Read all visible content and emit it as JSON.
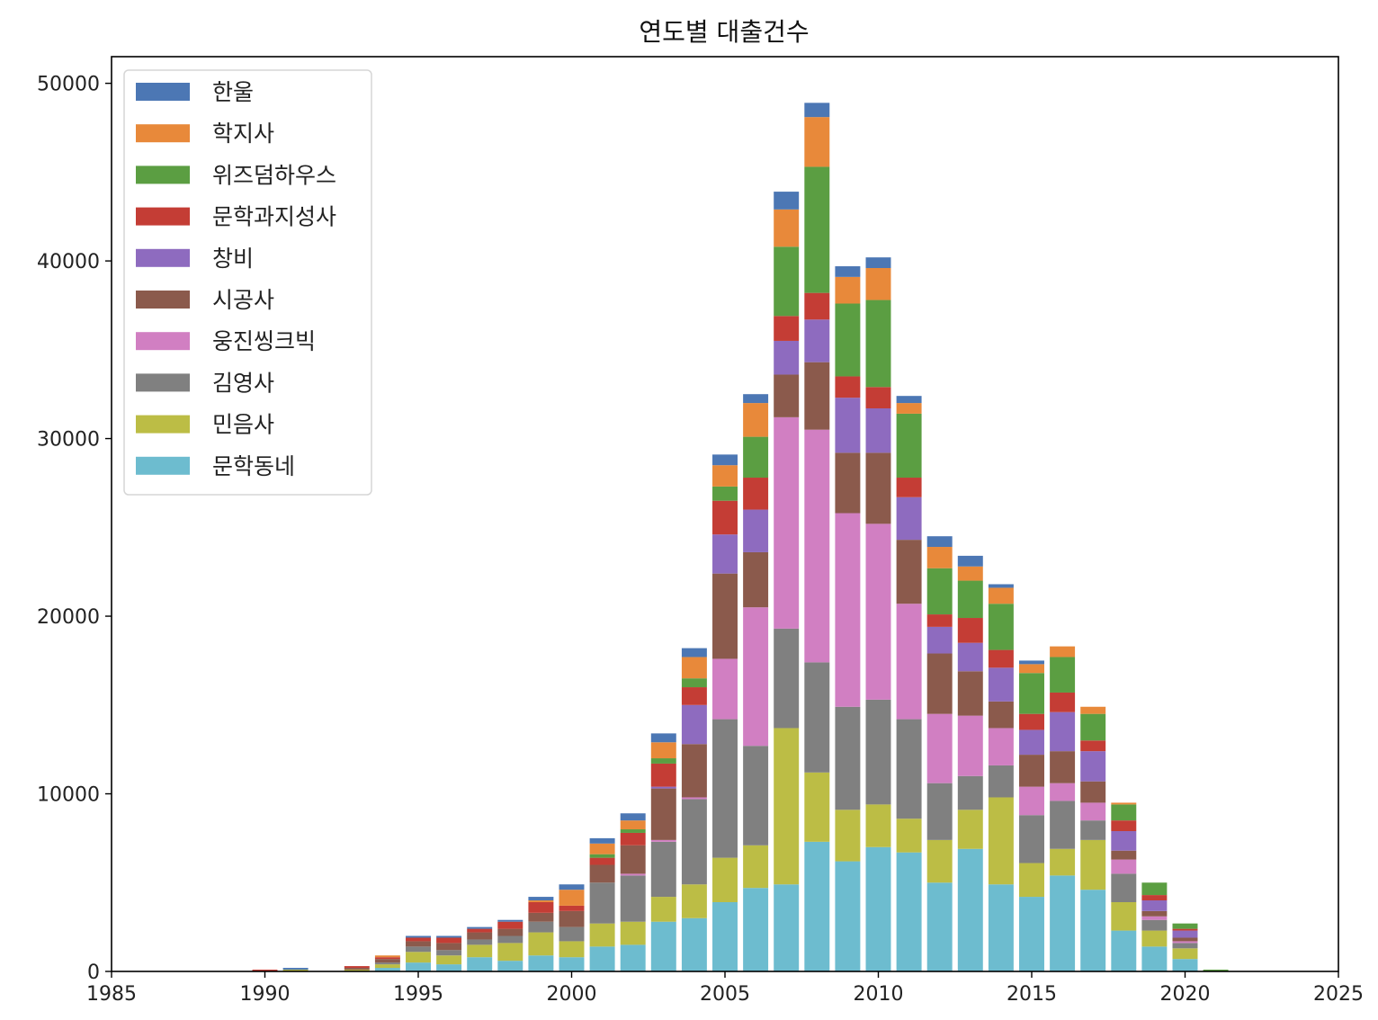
{
  "chart_data": {
    "type": "bar",
    "stacked": true,
    "title": "연도별 대출건수",
    "xlabel": "",
    "ylabel": "",
    "xlim": [
      1985,
      2025
    ],
    "ylim": [
      0,
      51500
    ],
    "xticks": [
      "1985",
      "1990",
      "1995",
      "2000",
      "2005",
      "2010",
      "2015",
      "2020",
      "2025"
    ],
    "yticks": [
      "0",
      "10000",
      "20000",
      "30000",
      "40000",
      "50000"
    ],
    "legend_position": "upper-left",
    "x": [
      1990,
      1991,
      1993,
      1994,
      1995,
      1996,
      1997,
      1998,
      1999,
      2000,
      2001,
      2002,
      2003,
      2004,
      2005,
      2006,
      2007,
      2008,
      2009,
      2010,
      2011,
      2012,
      2013,
      2014,
      2015,
      2016,
      2017,
      2018,
      2019,
      2020,
      2021
    ],
    "series": [
      {
        "name": "문학동네",
        "color": "#6dbccf",
        "values": [
          0,
          0,
          0,
          200,
          500,
          400,
          800,
          600,
          900,
          800,
          1400,
          1500,
          2800,
          3000,
          3900,
          4700,
          4900,
          7300,
          6200,
          7000,
          6700,
          5000,
          6900,
          4900,
          4200,
          5400,
          4600,
          2300,
          1400,
          700,
          0
        ]
      },
      {
        "name": "민음사",
        "color": "#bcbd45",
        "values": [
          0,
          100,
          100,
          200,
          600,
          500,
          700,
          1000,
          1300,
          900,
          1300,
          1300,
          1400,
          1900,
          2500,
          2400,
          8800,
          3900,
          2900,
          2400,
          1900,
          2400,
          2200,
          4900,
          1900,
          1500,
          2800,
          1600,
          900,
          600,
          0
        ]
      },
      {
        "name": "김영사",
        "color": "#808080",
        "values": [
          0,
          0,
          0,
          100,
          300,
          300,
          300,
          400,
          600,
          800,
          2300,
          2600,
          3100,
          4800,
          7800,
          5600,
          5600,
          6200,
          5800,
          5900,
          5600,
          3200,
          1900,
          1800,
          2700,
          2700,
          1100,
          1600,
          600,
          300,
          0
        ]
      },
      {
        "name": "웅진씽크빅",
        "color": "#d17fc2",
        "values": [
          0,
          0,
          0,
          0,
          0,
          0,
          0,
          0,
          0,
          0,
          0,
          100,
          100,
          100,
          3400,
          7800,
          11900,
          13100,
          10900,
          9900,
          6500,
          3900,
          3400,
          2100,
          1600,
          1000,
          1000,
          800,
          200,
          100,
          0
        ]
      },
      {
        "name": "시공사",
        "color": "#8b5a4c",
        "values": [
          0,
          0,
          100,
          200,
          300,
          400,
          400,
          400,
          500,
          900,
          1000,
          1600,
          2900,
          3000,
          4800,
          3100,
          2400,
          3800,
          3400,
          4000,
          3600,
          3400,
          2500,
          1500,
          1800,
          1800,
          1200,
          500,
          300,
          200,
          0
        ]
      },
      {
        "name": "창비",
        "color": "#8e6bbf",
        "values": [
          0,
          0,
          0,
          0,
          0,
          0,
          0,
          0,
          0,
          0,
          0,
          0,
          100,
          2200,
          2200,
          2400,
          1900,
          2400,
          3100,
          2500,
          2400,
          1500,
          1600,
          1900,
          1400,
          2200,
          1700,
          1100,
          600,
          400,
          0
        ]
      },
      {
        "name": "문학과지성사",
        "color": "#c43d35",
        "values": [
          100,
          0,
          100,
          100,
          200,
          300,
          200,
          400,
          600,
          300,
          400,
          700,
          1300,
          1000,
          1900,
          1800,
          1400,
          1500,
          1200,
          1200,
          1100,
          700,
          1400,
          1000,
          900,
          1100,
          600,
          600,
          300,
          100,
          0
        ]
      },
      {
        "name": "위즈덤하우스",
        "color": "#5b9e42",
        "values": [
          0,
          0,
          0,
          0,
          0,
          0,
          0,
          0,
          0,
          0,
          200,
          200,
          300,
          500,
          800,
          2300,
          3900,
          7100,
          4100,
          4900,
          3600,
          2600,
          2100,
          2600,
          2300,
          2000,
          1500,
          900,
          700,
          300,
          100
        ]
      },
      {
        "name": "학지사",
        "color": "#e8893a",
        "values": [
          0,
          0,
          0,
          100,
          0,
          0,
          0,
          0,
          100,
          900,
          600,
          500,
          900,
          1200,
          1200,
          1900,
          2100,
          2800,
          1500,
          1800,
          600,
          1200,
          800,
          900,
          500,
          600,
          400,
          100,
          0,
          0,
          0
        ]
      },
      {
        "name": "한울",
        "color": "#4c77b4",
        "values": [
          0,
          100,
          0,
          0,
          100,
          100,
          100,
          100,
          200,
          300,
          300,
          400,
          500,
          500,
          600,
          500,
          1000,
          800,
          600,
          600,
          400,
          600,
          600,
          200,
          200,
          0,
          0,
          0,
          0,
          0,
          0
        ]
      }
    ]
  }
}
